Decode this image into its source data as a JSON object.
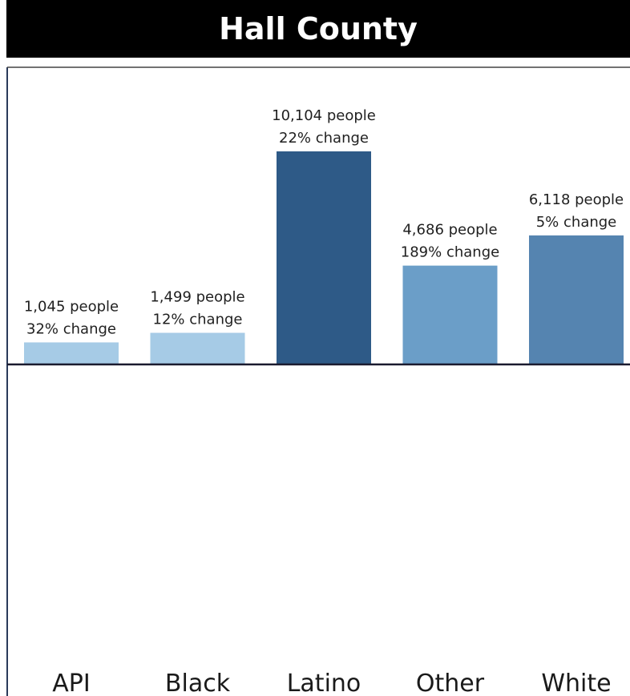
{
  "title": "Hall County",
  "chart_data": {
    "type": "bar",
    "title": "Hall County",
    "categories": [
      "API",
      "Black",
      "Latino",
      "Other",
      "White"
    ],
    "values": [
      1045,
      1499,
      10104,
      4686,
      6118
    ],
    "value_labels": [
      "1,045 people",
      "1,499 people",
      "10,104 people",
      "4,686 people",
      "6,118 people"
    ],
    "change_labels": [
      "32% change",
      "12% change",
      "22% change",
      "189% change",
      "5% change"
    ],
    "colors": [
      "#a6cbe6",
      "#a6cbe6",
      "#2e5a87",
      "#6b9ec8",
      "#5584b0"
    ],
    "ylim": [
      0,
      10104
    ],
    "grid": false,
    "legend": "none"
  }
}
